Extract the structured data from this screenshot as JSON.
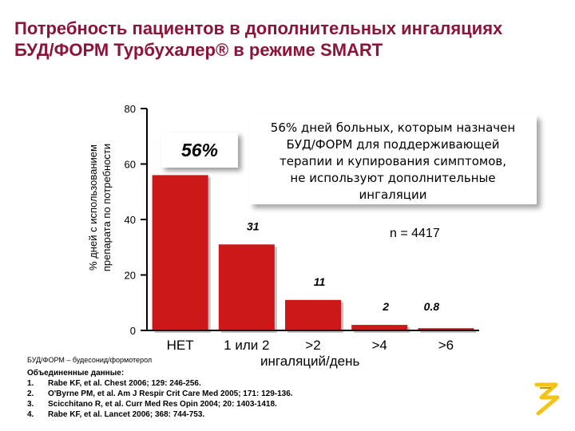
{
  "title": {
    "line1": "Потребность пациентов в дополнительных  ингаляциях",
    "line2": "БУД/ФОРМ Турбухалер® в режиме SMART"
  },
  "colors": {
    "title": "#8a1538",
    "bar": "#cc1818",
    "axis": "#000000"
  },
  "chart_data": {
    "type": "bar",
    "categories": [
      "НЕТ",
      "1 или 2",
      ">2",
      ">4",
      ">6"
    ],
    "values": [
      56,
      31,
      11,
      2,
      0.8
    ],
    "value_labels": [
      "56%",
      "31",
      "11",
      "2",
      "0.8"
    ],
    "ylim": [
      0,
      80
    ],
    "yticks": [
      0,
      20,
      40,
      60,
      80
    ],
    "ylabel_line1": "% дней с использованием",
    "ylabel_line2": "препарата по потребности",
    "xlabel": "ингаляций/день",
    "grid": false,
    "annotation_lines": [
      "56% дней больных, которым назначен",
      "БУД/ФОРМ для поддерживающей",
      "терапии и купирования симптомов,",
      "не используют дополнительные",
      "ингаляции"
    ],
    "n_label": "n = 4417"
  },
  "footer": {
    "abbreviation": "БУД/ФОРМ – будесонид/формотерол",
    "pooled_label": "Объединенные данные:",
    "references": [
      {
        "num": "1.",
        "text": "Rabe KF, et al. Chest 2006; 129: 246-256."
      },
      {
        "num": "2.",
        "text": "O'Byrne PM, et al. Am J Respir Crit Care Med 2005; 171: 129-136."
      },
      {
        "num": "3.",
        "text": "Scicchitano R, et al. Curr Med Res Opin 2004; 20: 1403-1418."
      },
      {
        "num": "4.",
        "text": "Rabe KF, et al. Lancet 2006; 368: 744-753."
      }
    ]
  },
  "logo_icon": "company-logo-icon"
}
